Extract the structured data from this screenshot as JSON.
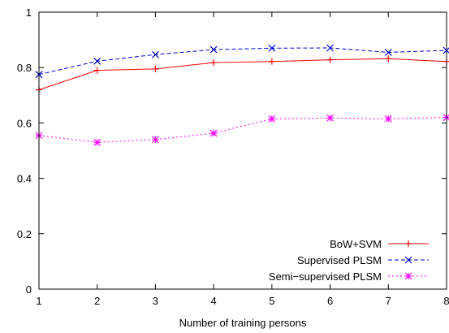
{
  "chart_data": {
    "type": "line",
    "title": "",
    "xlabel": "Number of training persons",
    "ylabel": "",
    "x": [
      1,
      2,
      3,
      4,
      5,
      6,
      7,
      8
    ],
    "xlim": [
      1,
      8
    ],
    "ylim": [
      0,
      1
    ],
    "xticks": [
      "1",
      "2",
      "3",
      "4",
      "5",
      "6",
      "7",
      "8"
    ],
    "yticks": [
      "0",
      "0.2",
      "0.4",
      "0.6",
      "0.8",
      "1"
    ],
    "grid": false,
    "legend_position": "bottom-right",
    "series": [
      {
        "name": "BoW+SVM",
        "values": [
          0.72,
          0.79,
          0.795,
          0.818,
          0.822,
          0.828,
          0.832,
          0.822
        ],
        "color": "#ff0000",
        "line_style": "solid",
        "marker": "plus"
      },
      {
        "name": "Supervised PLSM",
        "values": [
          0.775,
          0.823,
          0.847,
          0.865,
          0.87,
          0.871,
          0.855,
          0.862
        ],
        "color": "#0000cc",
        "line_style": "dashed",
        "marker": "x"
      },
      {
        "name": "Semi−supervised PLSM",
        "values": [
          0.555,
          0.53,
          0.54,
          0.563,
          0.615,
          0.618,
          0.615,
          0.62
        ],
        "color": "#ff00ff",
        "line_style": "dotted",
        "marker": "star"
      }
    ]
  }
}
